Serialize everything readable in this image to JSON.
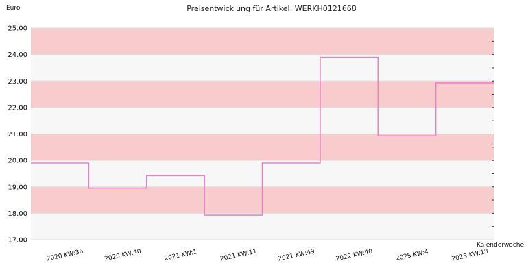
{
  "chart_data": {
    "type": "line",
    "step": true,
    "title": "Preisentwicklung für Artikel: WERKH0121668",
    "ylabel": "Euro",
    "xlabel": "Kalenderwoche",
    "ylim": [
      17.0,
      25.0
    ],
    "y_ticks": [
      "17.00",
      "18.00",
      "19.00",
      "20.00",
      "21.00",
      "22.00",
      "23.00",
      "24.00",
      "25.00"
    ],
    "categories": [
      "2020 KW:36",
      "2020 KW:40",
      "2021 KW:1",
      "2021 KW:11",
      "2021 KW:49",
      "2022 KW:40",
      "2025 KW:4",
      "2025 KW:18"
    ],
    "values": [
      19.9,
      18.95,
      19.43,
      17.93,
      19.9,
      23.9,
      20.93,
      22.93
    ],
    "line_color": "#ee82c8",
    "band_colors": [
      "#f7f7f7",
      "#f8cccc"
    ],
    "grid": true
  }
}
